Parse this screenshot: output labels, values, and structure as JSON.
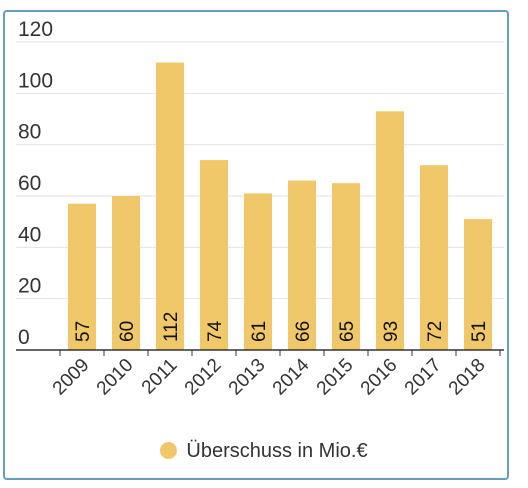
{
  "chart_data": {
    "type": "bar",
    "categories": [
      "2009",
      "2010",
      "2011",
      "2012",
      "2013",
      "2014",
      "2015",
      "2016",
      "2017",
      "2018"
    ],
    "series": [
      {
        "name": "Überschuss in Mio.€",
        "values": [
          57,
          60,
          112,
          74,
          61,
          66,
          65,
          93,
          72,
          51
        ]
      }
    ],
    "value_labels": [
      "57",
      "60",
      "112",
      "74",
      "61",
      "66",
      "65",
      "93",
      "72",
      "51"
    ],
    "yticks": [
      "0",
      "20",
      "40",
      "60",
      "80",
      "100",
      "120"
    ],
    "ylim": [
      0,
      120
    ],
    "grid": true,
    "legend_position": "bottom",
    "bar_color": "#f0c869",
    "title": "",
    "xlabel": "",
    "ylabel": ""
  }
}
